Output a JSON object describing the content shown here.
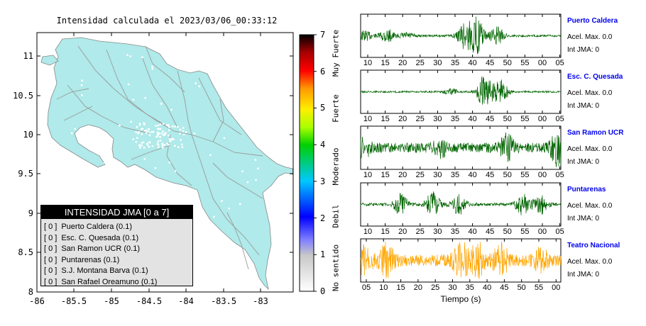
{
  "map": {
    "title": "Intensidad calculada el 2023/03/06_00:33:12",
    "lat_ticks": [
      "11",
      "10.5",
      "10",
      "9.5",
      "9",
      "8.5",
      "8"
    ],
    "lon_ticks": [
      "-86",
      "-85.5",
      "-85",
      "-84.5",
      "-84",
      "-83.5",
      "-83"
    ],
    "land_color": "#b0eaea",
    "sea_color": "#ffffff"
  },
  "colorbar": {
    "ticks": [
      "7",
      "6",
      "5",
      "4",
      "3",
      "2",
      "1",
      "0"
    ],
    "categories": [
      "Muy Fuerte",
      "Fuerte",
      "Moderado",
      "Debil",
      "No sentido"
    ]
  },
  "legend": {
    "title": "INTENSIDAD JMA [0 a 7]",
    "items": [
      {
        "badge": "[ 0 ]",
        "text": "Puerto Caldera (0.1)"
      },
      {
        "badge": "[ 0 ]",
        "text": "Esc. C. Quesada (0.1)"
      },
      {
        "badge": "[ 0 ]",
        "text": "San Ramon UCR (0.1)"
      },
      {
        "badge": "[ 0 ]",
        "text": "Puntarenas (0.1)"
      },
      {
        "badge": "[ 0 ]",
        "text": "S.J. Montana Barva (0.1)"
      },
      {
        "badge": "[ 0 ]",
        "text": "San Rafael Oreamuno (0.1)"
      }
    ]
  },
  "waveforms": {
    "xlabel": "Tiempo (s)",
    "ticks_a": [
      "10",
      "15",
      "20",
      "25",
      "30",
      "35",
      "40",
      "45",
      "50",
      "55",
      "00",
      "05"
    ],
    "ticks_b": [
      "05",
      "10",
      "15",
      "20",
      "25",
      "30",
      "35",
      "40",
      "45",
      "50",
      "55",
      "00"
    ],
    "panels": [
      {
        "name": "Puerto Caldera",
        "acel": "Acel. Max. 0.0",
        "jma": "Int JMA: 0",
        "color": "#006400"
      },
      {
        "name": "Esc. C. Quesada",
        "acel": "Acel. Max. 0.0",
        "jma": "Int JMA: 0",
        "color": "#006400"
      },
      {
        "name": "San Ramon UCR",
        "acel": "Acel. Max. 0.0",
        "jma": "Int JMA: 0",
        "color": "#006400"
      },
      {
        "name": "Puntarenas",
        "acel": "Acel. Max. 0.0",
        "jma": "Int JMA: 0",
        "color": "#006400"
      },
      {
        "name": "Teatro Nacional",
        "acel": "Acel. Max. 0.0",
        "jma": "Int JMA: 0",
        "color": "#ffa500"
      }
    ]
  }
}
